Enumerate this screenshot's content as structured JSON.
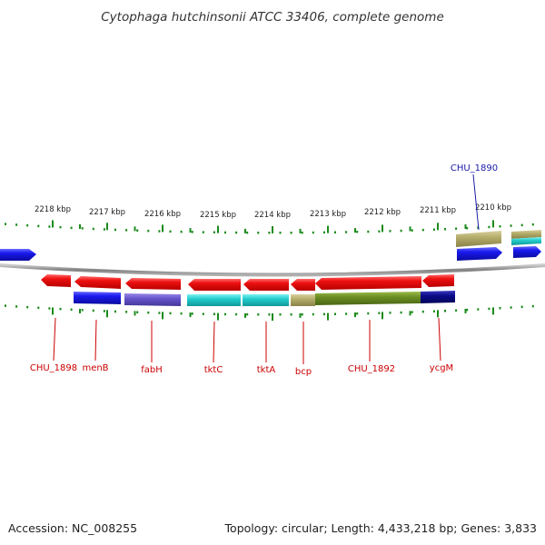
{
  "title": "Cytophaga hutchinsonii ATCC 33406, complete genome",
  "footer": {
    "accession_label": "Accession:",
    "accession": "NC_008255",
    "topology_label": "Topology:",
    "topology": "circular",
    "length_label": "Length:",
    "length": "4,433,218 bp",
    "genes_label": "Genes:",
    "genes": "3,833"
  },
  "ruler_labels": [
    "2218 kbp",
    "2217 kbp",
    "2216 kbp",
    "2215 kbp",
    "2214 kbp",
    "2213 kbp",
    "2212 kbp",
    "2211 kbp",
    "2210 kbp"
  ],
  "gene_labels_bottom": [
    "CHU_1898",
    "menB",
    "fabH",
    "tktC",
    "tktA",
    "bcp",
    "CHU_1892",
    "ycgM"
  ],
  "gene_labels_top": [
    "CHU_1890"
  ],
  "colors": {
    "cds": "#ee1111",
    "blue": "#1a1aee",
    "purple": "#6655cc",
    "cyan": "#22cccc",
    "olive": "#6b8e23",
    "khaki": "#b5ad6a",
    "navy": "#0a0a88",
    "backbone": "#888888",
    "tick": "#1a8a1a"
  }
}
